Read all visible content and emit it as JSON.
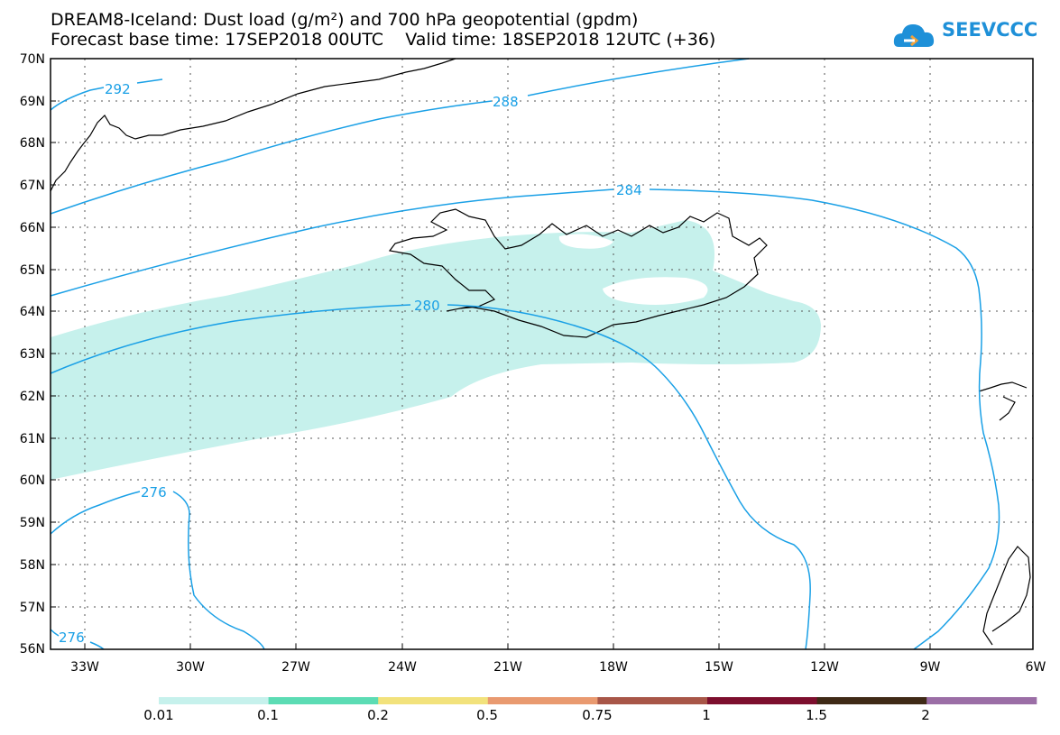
{
  "title_line1": "DREAM8-Iceland: Dust load (g/m²) and 700 hPa geopotential (gpdm)",
  "title_line2": "Forecast base time: 17SEP2018 00UTC    Valid time: 18SEP2018 12UTC (+36)",
  "logo": {
    "text": "SEEVCCC",
    "icon": "cloud-logo-icon",
    "color": "#1e90d8"
  },
  "latitudes": [
    "70N",
    "69N",
    "68N",
    "67N",
    "66N",
    "65N",
    "64N",
    "63N",
    "62N",
    "61N",
    "60N",
    "59N",
    "58N",
    "57N",
    "56N"
  ],
  "longitudes": [
    "33W",
    "30W",
    "27W",
    "24W",
    "21W",
    "18W",
    "15W",
    "12W",
    "9W",
    "6W"
  ],
  "contour_labels": [
    "292",
    "288",
    "284",
    "280",
    "276",
    "276"
  ],
  "colorbar": {
    "thresholds": [
      "0.01",
      "0.1",
      "0.2",
      "0.5",
      "0.75",
      "1",
      "1.5",
      "2"
    ],
    "colors": [
      "#c6f1ec",
      "#5cdcb4",
      "#f2e27c",
      "#e99a70",
      "#a85648",
      "#7d0f2e",
      "#3f2a16",
      "#9b6ea6"
    ]
  },
  "colors": {
    "contour": "#1aa0e6",
    "dust": "#c6f1ec",
    "coast": "#000000"
  }
}
